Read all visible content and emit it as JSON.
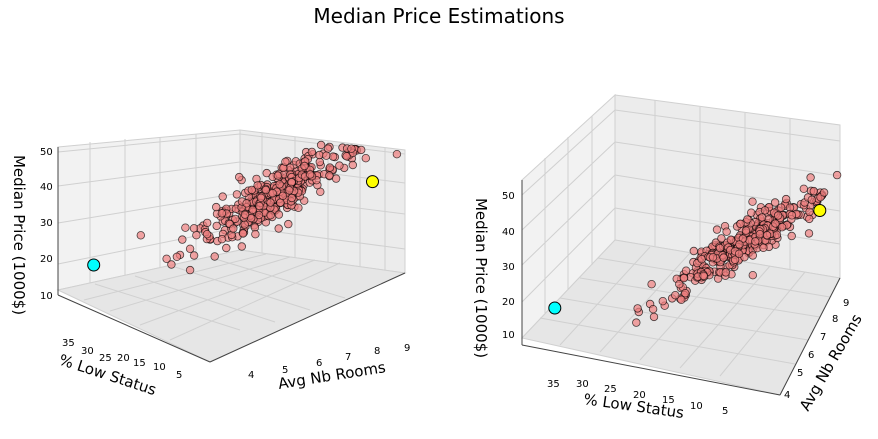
{
  "figure": {
    "title": "Median Price Estimations"
  },
  "chart_data": [
    {
      "type": "scatter",
      "view": "left",
      "title": "",
      "xlabel": "Avg Nb Rooms",
      "ylabel": "% Low Status",
      "zlabel": "Median Price (1000$)",
      "xlim": [
        3.5,
        9.0
      ],
      "ylim": [
        2,
        38
      ],
      "zlim": [
        5,
        52
      ],
      "x_ticks": [
        "4",
        "5",
        "6",
        "7",
        "8",
        "9"
      ],
      "y_ticks": [
        "35",
        "30",
        "25",
        "20",
        "15",
        "10",
        "5"
      ],
      "z_ticks": [
        "10",
        "20",
        "30",
        "40",
        "50"
      ],
      "highlight_points": [
        {
          "rooms": 4.1,
          "lstat": 34.8,
          "price": 14.5,
          "color": "#00ffff"
        },
        {
          "rooms": 8.2,
          "lstat": 3.8,
          "price": 40.0,
          "color": "#ffff00"
        }
      ],
      "point_color": "#f08080",
      "point_edge": "#000000",
      "grid": true
    },
    {
      "type": "scatter",
      "view": "right",
      "title": "",
      "xlabel": "% Low Status",
      "ylabel": "Avg Nb Rooms",
      "zlabel": "Median Price (1000$)",
      "xlim": [
        38,
        2
      ],
      "ylim": [
        3.5,
        9.0
      ],
      "zlim": [
        5,
        52
      ],
      "x_ticks": [
        "35",
        "30",
        "25",
        "20",
        "15",
        "10",
        "5"
      ],
      "y_ticks": [
        "4",
        "5",
        "6",
        "7",
        "8",
        "9"
      ],
      "z_ticks": [
        "10",
        "20",
        "30",
        "40",
        "50"
      ],
      "highlight_points": [
        {
          "rooms": 4.1,
          "lstat": 34.8,
          "price": 14.5,
          "color": "#00ffff"
        },
        {
          "rooms": 8.2,
          "lstat": 3.8,
          "price": 40.0,
          "color": "#ffff00"
        }
      ],
      "point_color": "#f08080",
      "point_edge": "#000000",
      "grid": true
    }
  ]
}
